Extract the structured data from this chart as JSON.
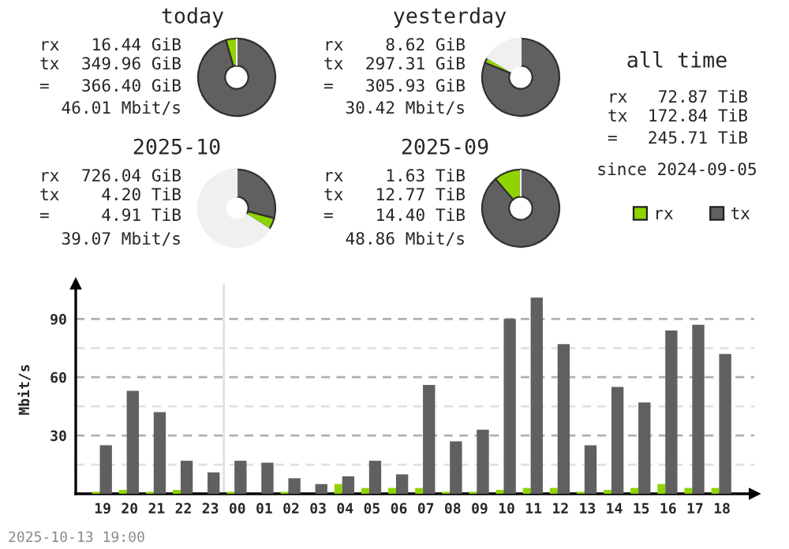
{
  "chart_data": [
    {
      "type": "donut",
      "title": "today",
      "categories": [
        null,
        null,
        null
      ],
      "values": [
        95.51,
        4.49,
        0
      ],
      "colors": [
        "#606060",
        "#8fd400",
        "#f0f0f0"
      ],
      "annotations": [
        "rx",
        "16.44 GiB",
        "tx",
        "349.96 GiB",
        "=",
        "366.40 GiB",
        "46.01 Mbit/s"
      ]
    },
    {
      "type": "donut",
      "title": "yesterday",
      "categories": [
        null,
        null,
        null
      ],
      "values": [
        81.14,
        2.35,
        16.51
      ],
      "colors": [
        "#606060",
        "#8fd400",
        "#f0f0f0"
      ],
      "annotations": [
        "rx",
        "8.62 GiB",
        "tx",
        "297.31 GiB",
        "=",
        "305.93 GiB",
        "30.42 Mbit/s"
      ]
    },
    {
      "type": "other",
      "title": "all time",
      "annotations": [
        "rx",
        "72.87 TiB",
        "tx",
        "172.84 TiB",
        "=",
        "245.71 TiB",
        "since 2024-09-05"
      ]
    },
    {
      "type": "donut",
      "title": "2025-10",
      "categories": [
        null,
        null,
        null
      ],
      "values": [
        29.17,
        4.92,
        65.91
      ],
      "colors": [
        "#606060",
        "#8fd400",
        "#f0f0f0"
      ],
      "annotations": [
        "rx",
        "726.04 GiB",
        "tx",
        "4.20 TiB",
        "=",
        "4.91 TiB",
        "39.07 Mbit/s"
      ]
    },
    {
      "type": "donut",
      "title": "2025-09",
      "categories": [
        null,
        null,
        null
      ],
      "values": [
        88.68,
        11.32,
        0
      ],
      "colors": [
        "#606060",
        "#8fd400",
        "#f0f0f0"
      ],
      "annotations": [
        "rx",
        "1.63 TiB",
        "tx",
        "12.77 TiB",
        "=",
        "14.40 TiB",
        "48.86 Mbit/s"
      ]
    },
    {
      "type": "bar",
      "ylabel": "Mbit/s",
      "categories": [
        "19",
        "20",
        "21",
        "22",
        "23",
        "00",
        "01",
        "02",
        "03",
        "04",
        "05",
        "06",
        "07",
        "08",
        "09",
        "10",
        "11",
        "12",
        "13",
        "14",
        "15",
        "16",
        "17",
        "18"
      ],
      "series": [
        {
          "name": "rx",
          "color": "#8fd400",
          "values": [
            1,
            2,
            1,
            2,
            0,
            1,
            0,
            1,
            0,
            5,
            3,
            3,
            3,
            1,
            1,
            2,
            3,
            3,
            1,
            2,
            3,
            5,
            3,
            3
          ]
        },
        {
          "name": "tx",
          "color": "#606060",
          "values": [
            25,
            53,
            42,
            17,
            11,
            17,
            16,
            8,
            5,
            9,
            17,
            10,
            56,
            27,
            33,
            90,
            101,
            77,
            25,
            55,
            47,
            84,
            87,
            72
          ]
        }
      ],
      "ylim": [
        0,
        108
      ],
      "yticks": [
        {
          "value": 15,
          "label": null
        },
        30,
        {
          "value": 45,
          "label": null
        },
        60,
        {
          "value": 75,
          "label": null
        },
        90
      ],
      "grid": "y",
      "legend": "top right",
      "ref_lines": [
        {
          "axis": "x",
          "value": "00",
          "color": "#e0e0e0"
        }
      ],
      "annotations": [
        "2025-10-13 19:00"
      ]
    }
  ]
}
